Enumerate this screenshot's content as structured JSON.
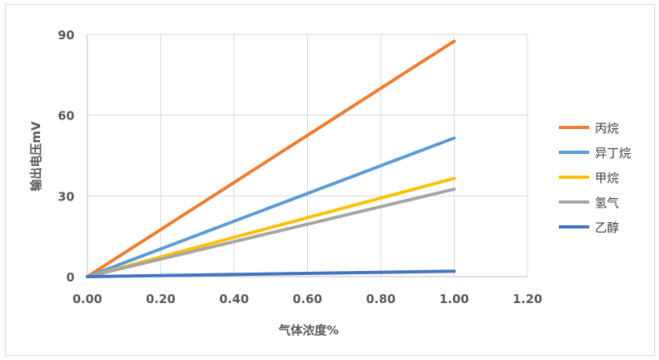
{
  "chart_data": {
    "type": "line",
    "title": "",
    "xlabel": "气体浓度%",
    "ylabel": "输出电压mV",
    "xlim": [
      0,
      1.2
    ],
    "ylim": [
      0,
      90
    ],
    "xticks": [
      "0.00",
      "0.20",
      "0.40",
      "0.60",
      "0.80",
      "1.00",
      "1.20"
    ],
    "yticks": [
      "0",
      "30",
      "60",
      "90"
    ],
    "grid": true,
    "legend_position": "right",
    "series": [
      {
        "name": "丙烷",
        "color": "#ED7D31",
        "points": [
          [
            0,
            0
          ],
          [
            1.0,
            87.5
          ]
        ]
      },
      {
        "name": "异丁烷",
        "color": "#5B9BD5",
        "points": [
          [
            0,
            0
          ],
          [
            1.0,
            51.5
          ]
        ]
      },
      {
        "name": "甲烷",
        "color": "#FFC000",
        "points": [
          [
            0,
            0
          ],
          [
            1.0,
            36.5
          ]
        ]
      },
      {
        "name": "氢气",
        "color": "#A5A5A5",
        "points": [
          [
            0,
            0
          ],
          [
            1.0,
            32.5
          ]
        ]
      },
      {
        "name": "乙醇",
        "color": "#4472C4",
        "points": [
          [
            0,
            0
          ],
          [
            1.0,
            2.0
          ]
        ]
      }
    ]
  }
}
